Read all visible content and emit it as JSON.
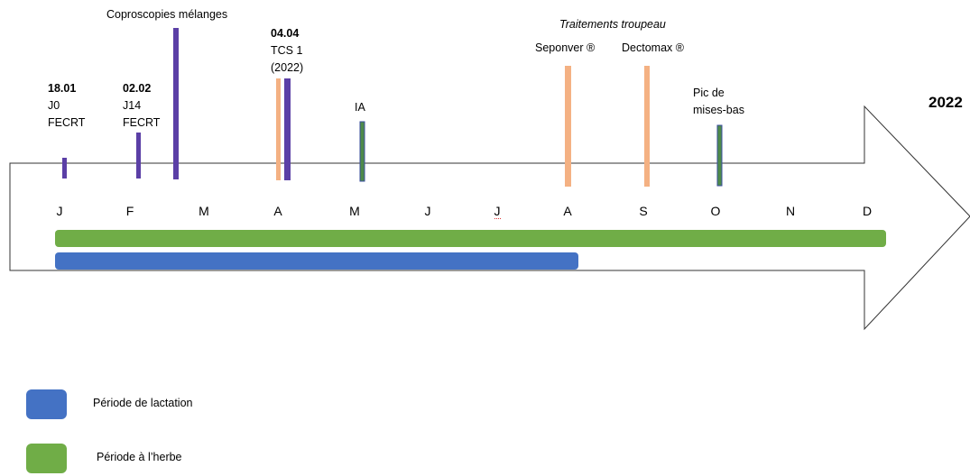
{
  "year": "2022",
  "months": [
    "J",
    "F",
    "M",
    "A",
    "M",
    "J",
    "J",
    "A",
    "S",
    "O",
    "N",
    "D"
  ],
  "events": {
    "e1": {
      "date": "18.01",
      "line2": "J0",
      "line3": "FECRT"
    },
    "e2": {
      "date": "02.02",
      "line2": "J14",
      "line3": "FECRT"
    },
    "copro": "Coproscopies mélanges",
    "e3": {
      "date": "04.04",
      "line2": "TCS 1",
      "line3": "(2022)"
    },
    "ia": "IA",
    "treatments_title": "Traitements troupeau",
    "seponver": "Seponver ®",
    "dectomax": "Dectomax ®",
    "pic_line1": "Pic de",
    "pic_line2": "mises-bas"
  },
  "periods": [
    {
      "label": "Période à l'herbe",
      "start_month": "J",
      "end_month": "D"
    },
    {
      "label": "Période de lactation",
      "start_month": "J",
      "end_month": "A"
    }
  ],
  "legend": [
    {
      "label": "Période de lactation",
      "color": "#4472C4"
    },
    {
      "label": "Période à l’herbe",
      "color": "#70AD47"
    }
  ],
  "colors": {
    "purple": "#5B3FA6",
    "salmon": "#F4B183",
    "green": "#70AD47",
    "blue": "#4472C4",
    "teal_bar": "#2F6E5A"
  }
}
